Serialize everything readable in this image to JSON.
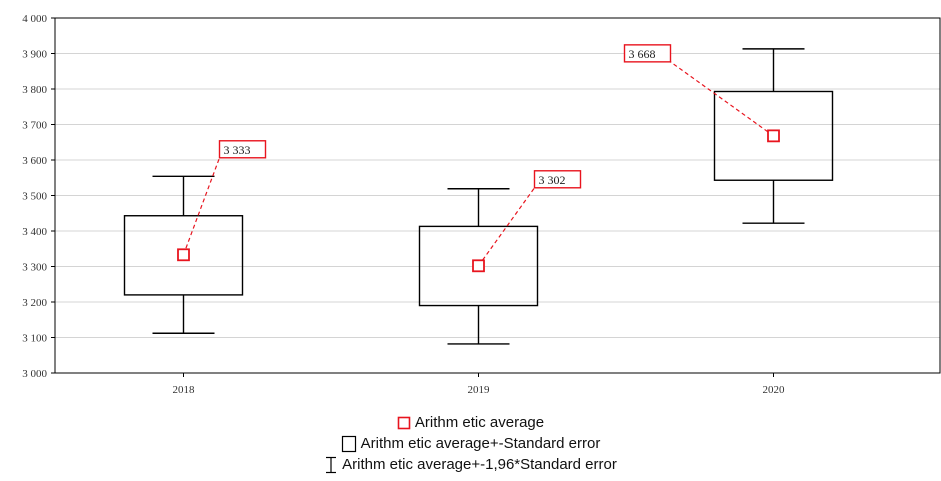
{
  "chart_data": {
    "type": "box",
    "categories": [
      "2018",
      "2019",
      "2020"
    ],
    "mean": [
      3333,
      3302,
      3668
    ],
    "se_lower": [
      3220,
      3190,
      3543
    ],
    "se_upper": [
      3443,
      3413,
      3793
    ],
    "ci_lower": [
      3112,
      3082,
      3422
    ],
    "ci_upper": [
      3554,
      3519,
      3913
    ],
    "mean_labels": [
      "3 333",
      "3 302",
      "3 668"
    ],
    "ylim": [
      3000,
      4000
    ],
    "yticks": [
      3000,
      3100,
      3200,
      3300,
      3400,
      3500,
      3600,
      3700,
      3800,
      3900,
      4000
    ],
    "ytick_labels": [
      "3 000",
      "3 100",
      "3 200",
      "3 300",
      "3 400",
      "3 500",
      "3 600",
      "3 700",
      "3 800",
      "3 900",
      "4 000"
    ],
    "grid": true,
    "xlabel": "",
    "ylabel": "",
    "title": "",
    "legend_position": "bottom-center",
    "colors": {
      "mean_marker": "#e8141e",
      "box": "#000000",
      "grid": "#d4d4d4"
    }
  },
  "legend": {
    "mean": "Arithm etic average",
    "se": "Arithm etic average+-Standard error",
    "ci": "Arithm etic average+-1,96*Standard error"
  }
}
